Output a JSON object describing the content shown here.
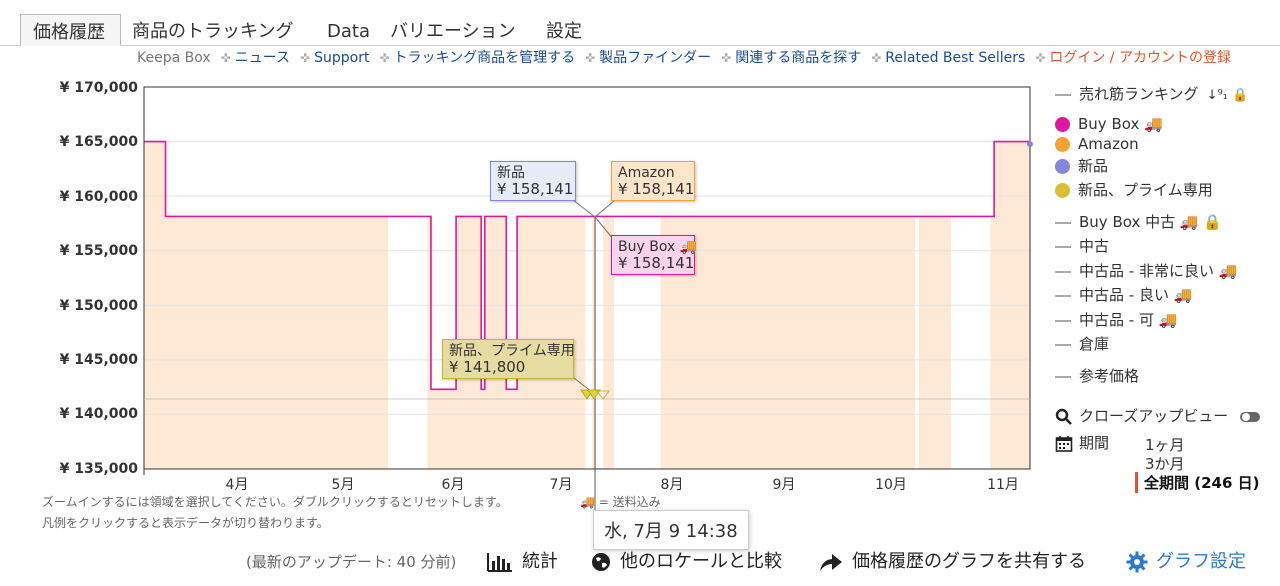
{
  "tabs": [
    {
      "label": "価格履歴",
      "active": true
    },
    {
      "label": "商品のトラッキング"
    },
    {
      "label": "Data"
    },
    {
      "label": "バリエーション"
    },
    {
      "label": "設定"
    }
  ],
  "sublinks": {
    "keepa_box": "Keepa Box",
    "items": [
      "ニュース",
      "Support",
      "トラッキング商品を管理する",
      "製品ファインダー",
      "関連する商品を探す",
      "Related Best Sellers"
    ],
    "login": "ログイン / アカウントの登録"
  },
  "colors": {
    "buy_box": "#e0169c",
    "amazon": "#f5a234",
    "new": "#8686d8",
    "new_prime": "#d8c232",
    "fill": "#fde9d6",
    "link": "#1a4c8f",
    "accent": "#e0542e",
    "settings": "#2a7ad1"
  },
  "chart_data": {
    "type": "line",
    "ylim": [
      135000,
      170000
    ],
    "yticks": [
      "¥ 170,000",
      "¥ 165,000",
      "¥ 160,000",
      "¥ 155,000",
      "¥ 150,000",
      "¥ 145,000",
      "¥ 140,000",
      "¥ 135,000"
    ],
    "xticks": [
      "4月",
      "5月",
      "6月",
      "7月",
      "8月",
      "9月",
      "10月",
      "11月"
    ],
    "x_start": "2023-03-10",
    "x_end": "2023-11-12",
    "series": [
      {
        "name": "Buy Box",
        "points": [
          [
            "2023-03-10",
            165000
          ],
          [
            "2023-03-16",
            158141
          ],
          [
            "2023-05-28",
            158141
          ],
          [
            "2023-05-29",
            142300
          ],
          [
            "2023-06-04",
            142300
          ],
          [
            "2023-06-05",
            158141
          ],
          [
            "2023-06-11",
            158141
          ],
          [
            "2023-06-12",
            142300
          ],
          [
            "2023-06-13",
            158141
          ],
          [
            "2023-06-18",
            158141
          ],
          [
            "2023-06-19",
            142300
          ],
          [
            "2023-06-21",
            142300
          ],
          [
            "2023-06-22",
            158141
          ],
          [
            "2023-10-21",
            158141
          ],
          [
            "2023-11-02",
            165000
          ],
          [
            "2023-11-12",
            165000
          ]
        ]
      }
    ],
    "tooltips": [
      {
        "name": "新品",
        "value": "¥ 158,141"
      },
      {
        "name": "Amazon",
        "value": "¥ 158,141"
      },
      {
        "name": "Buy Box 🚚",
        "value": "¥ 158,141"
      },
      {
        "name": "新品、プライム専用",
        "value": "¥ 141,800"
      }
    ],
    "hover_date": "水, 7月 9 14:38"
  },
  "legend": [
    {
      "label": "売れ筋ランキング",
      "style": "dash",
      "extra": "↓⁹₁ 🔒"
    },
    {
      "label": "Buy Box 🚚",
      "style": "dot",
      "color": "#e0169c"
    },
    {
      "label": "Amazon",
      "style": "dot",
      "color": "#f5a234"
    },
    {
      "label": "新品",
      "style": "dot",
      "color": "#8686d8"
    },
    {
      "label": "新品、プライム専用",
      "style": "dot",
      "color": "#d8c232"
    },
    {
      "label": "Buy Box 中古 🚚 🔒",
      "style": "dash"
    },
    {
      "label": "中古",
      "style": "dash"
    },
    {
      "label": "中古品 - 非常に良い 🚚",
      "style": "dash"
    },
    {
      "label": "中古品 - 良い 🚚",
      "style": "dash"
    },
    {
      "label": "中古品 - 可 🚚",
      "style": "dash"
    },
    {
      "label": "倉庫",
      "style": "dash"
    },
    {
      "label": "参考価格",
      "style": "dash"
    }
  ],
  "closeup": "クローズアップビュー",
  "period": {
    "label": "期間",
    "options": [
      "1ヶ月",
      "3か月"
    ],
    "selected": "全期間 (246 日)"
  },
  "notes": {
    "zoom": "ズームインするには領域を選択してください。ダブルクリックするとリセットします。",
    "shipping": "🚚 = 送料込み",
    "legend_hint": "凡例をクリックすると表示データが切り替わります。"
  },
  "footer": {
    "update": "(最新のアップデート: 40 分前)",
    "stats": "統計",
    "compare": "他のロケールと比較",
    "share": "価格履歴のグラフを共有する",
    "settings": "グラフ設定"
  }
}
